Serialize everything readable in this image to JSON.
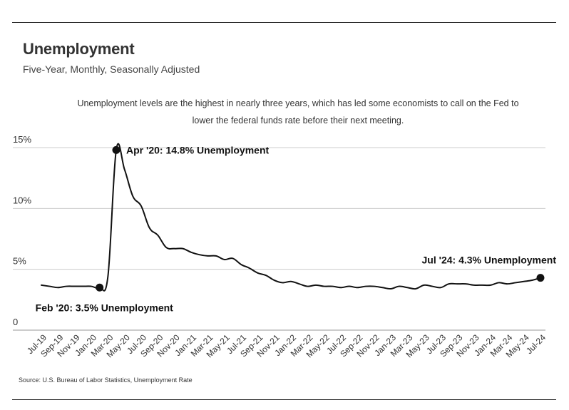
{
  "header": {
    "title": "Unemployment",
    "subtitle": "Five-Year, Monthly, Seasonally Adjusted",
    "annotation": "Unemployment levels are the highest in nearly three years, which has led some economists to call on the Fed to lower the federal funds rate before their next meeting."
  },
  "footer": {
    "source": "Source:  U.S. Bureau of Labor Statistics, Unemployment Rate"
  },
  "colors": {
    "line": "#111111",
    "grid": "#cccccc",
    "text": "#222222"
  },
  "chart_data": {
    "type": "line",
    "title": "Unemployment",
    "subtitle": "Five-Year, Monthly, Seasonally Adjusted",
    "xlabel": "",
    "ylabel": "",
    "ylim": [
      0,
      15
    ],
    "yticks": [
      0,
      5,
      10,
      15
    ],
    "ytick_labels": [
      "0",
      "5%",
      "10%",
      "15%"
    ],
    "x_tick_labels": [
      "Jul-19",
      "Sep-19",
      "Nov-19",
      "Jan-20",
      "Mar-20",
      "May-20",
      "Jul-20",
      "Sep-20",
      "Nov-20",
      "Jan-21",
      "Mar-21",
      "May-21",
      "Jul-21",
      "Sep-21",
      "Nov-21",
      "Jan-22",
      "Mar-22",
      "May-22",
      "Jul-22",
      "Sep-22",
      "Nov-22",
      "Jan-23",
      "Mar-23",
      "May-23",
      "Jul-23",
      "Sep-23",
      "Nov-23",
      "Jan-24",
      "Mar-24",
      "May-24",
      "Jul-24"
    ],
    "series": [
      {
        "name": "Unemployment Rate",
        "x": [
          "Jul-19",
          "Aug-19",
          "Sep-19",
          "Oct-19",
          "Nov-19",
          "Dec-19",
          "Jan-20",
          "Feb-20",
          "Mar-20",
          "Apr-20",
          "May-20",
          "Jun-20",
          "Jul-20",
          "Aug-20",
          "Sep-20",
          "Oct-20",
          "Nov-20",
          "Dec-20",
          "Jan-21",
          "Feb-21",
          "Mar-21",
          "Apr-21",
          "May-21",
          "Jun-21",
          "Jul-21",
          "Aug-21",
          "Sep-21",
          "Oct-21",
          "Nov-21",
          "Dec-21",
          "Jan-22",
          "Feb-22",
          "Mar-22",
          "Apr-22",
          "May-22",
          "Jun-22",
          "Jul-22",
          "Aug-22",
          "Sep-22",
          "Oct-22",
          "Nov-22",
          "Dec-22",
          "Jan-23",
          "Feb-23",
          "Mar-23",
          "Apr-23",
          "May-23",
          "Jun-23",
          "Jul-23",
          "Aug-23",
          "Sep-23",
          "Oct-23",
          "Nov-23",
          "Dec-23",
          "Jan-24",
          "Feb-24",
          "Mar-24",
          "Apr-24",
          "May-24",
          "Jun-24",
          "Jul-24"
        ],
        "values": [
          3.7,
          3.6,
          3.5,
          3.6,
          3.6,
          3.6,
          3.6,
          3.5,
          4.4,
          14.8,
          13.2,
          11.0,
          10.2,
          8.4,
          7.8,
          6.8,
          6.7,
          6.7,
          6.4,
          6.2,
          6.1,
          6.1,
          5.8,
          5.9,
          5.4,
          5.1,
          4.7,
          4.5,
          4.1,
          3.9,
          4.0,
          3.8,
          3.6,
          3.7,
          3.6,
          3.6,
          3.5,
          3.6,
          3.5,
          3.6,
          3.6,
          3.5,
          3.4,
          3.6,
          3.5,
          3.4,
          3.7,
          3.6,
          3.5,
          3.8,
          3.8,
          3.8,
          3.7,
          3.7,
          3.7,
          3.9,
          3.8,
          3.9,
          4.0,
          4.1,
          4.3
        ]
      }
    ],
    "annotations": [
      {
        "x": "Apr-20",
        "value": 14.8,
        "label": "Apr '20: 14.8% Unemployment"
      },
      {
        "x": "Feb-20",
        "value": 3.5,
        "label": "Feb '20: 3.5% Unemployment"
      },
      {
        "x": "Jul-24",
        "value": 4.3,
        "label": "Jul '24: 4.3% Unemployment"
      }
    ],
    "grid": true
  }
}
